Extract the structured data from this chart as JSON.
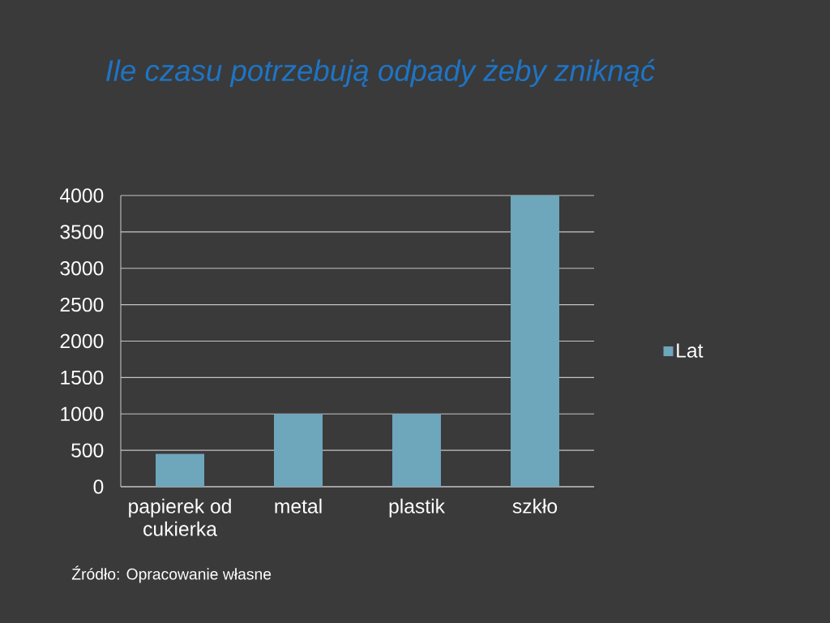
{
  "chart_data": {
    "type": "bar",
    "title": "Ile czasu potrzebują odpady żeby zniknąć",
    "categories": [
      "papierek od cukierka",
      "metal",
      "plastik",
      "szkło"
    ],
    "series": [
      {
        "name": "Lat",
        "color": "#6ea6bc",
        "values": [
          450,
          1000,
          1000,
          4000
        ]
      }
    ],
    "ylim": [
      0,
      4000
    ],
    "yticks": [
      0,
      500,
      1000,
      1500,
      2000,
      2500,
      3000,
      3500,
      4000
    ],
    "grid": "y",
    "legend": "right",
    "annotations": [
      "Źródło: Opracowanie własne"
    ]
  }
}
